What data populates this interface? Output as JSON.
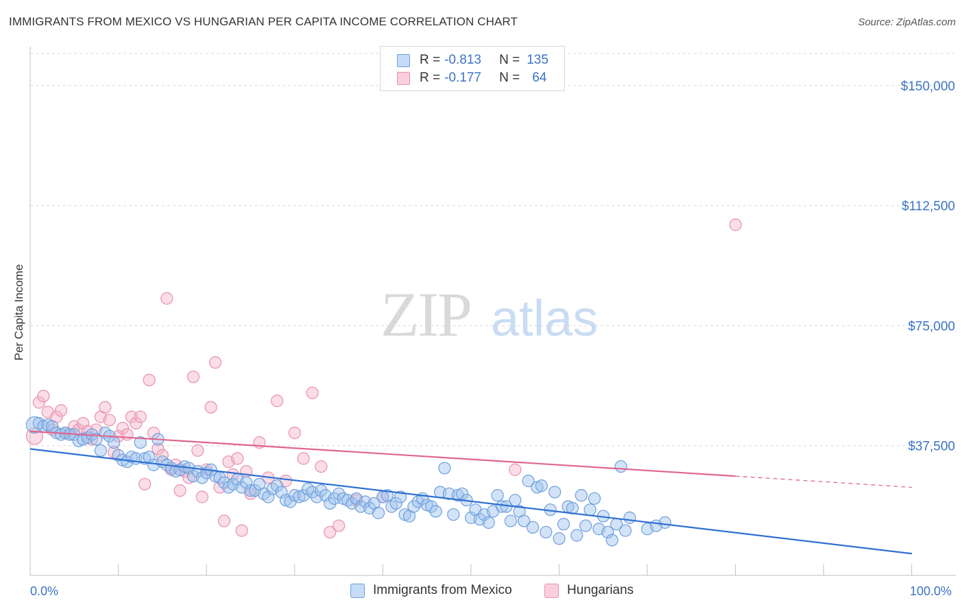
{
  "title": "IMMIGRANTS FROM MEXICO VS HUNGARIAN PER CAPITA INCOME CORRELATION CHART",
  "source": "Source: ZipAtlas.com",
  "watermark": {
    "zip": "ZIP",
    "atlas": "atlas"
  },
  "legend_top": {
    "r_label": "R =",
    "n_label": "N =",
    "rows": [
      {
        "r": "-0.813",
        "n": "135"
      },
      {
        "r": "-0.177",
        "n": "64"
      }
    ]
  },
  "colors": {
    "blue_fill": "#9dc1ee",
    "blue_stroke": "#6d9fdc",
    "blue_line": "#2e6fd1",
    "pink_fill": "#f5b3c8",
    "pink_stroke": "#e891ad",
    "pink_line": "#e0658f",
    "axis_text": "#3a73c6",
    "grid": "#d8d8d8"
  },
  "chart_data": {
    "type": "scatter",
    "title": "IMMIGRANTS FROM MEXICO VS HUNGARIAN PER CAPITA INCOME CORRELATION CHART",
    "xlabel": "",
    "ylabel": "Per Capita Income",
    "xlim": [
      0,
      100
    ],
    "ylim": [
      0,
      160000
    ],
    "x_tick_labels": [
      "0.0%",
      "100.0%"
    ],
    "y_ticks": [
      37500,
      75000,
      112500,
      150000
    ],
    "y_tick_labels": [
      "$37,500",
      "$75,000",
      "$112,500",
      "$150,000"
    ],
    "grid": "horizontal dashed",
    "legend_placement": "bottom-center",
    "series": [
      {
        "name": "Immigrants from Mexico",
        "color": "#9dc1ee",
        "R": -0.813,
        "N": 135,
        "trend": {
          "x": [
            0,
            100
          ],
          "y": [
            36500,
            3800
          ]
        },
        "points": [
          [
            0.5,
            44000
          ],
          [
            1.0,
            44500
          ],
          [
            1.5,
            43500
          ],
          [
            2.0,
            44000
          ],
          [
            2.5,
            43500
          ],
          [
            3.0,
            41500
          ],
          [
            3.5,
            41000
          ],
          [
            4.0,
            41500
          ],
          [
            4.5,
            41000
          ],
          [
            5.0,
            41000
          ],
          [
            5.5,
            39000
          ],
          [
            6.0,
            39500
          ],
          [
            6.5,
            40000
          ],
          [
            7.0,
            41000
          ],
          [
            7.5,
            39500
          ],
          [
            8.0,
            36000
          ],
          [
            8.5,
            41500
          ],
          [
            9.0,
            40500
          ],
          [
            9.5,
            38500
          ],
          [
            10.0,
            34500
          ],
          [
            10.5,
            33000
          ],
          [
            11.0,
            32500
          ],
          [
            11.5,
            34000
          ],
          [
            12.0,
            33500
          ],
          [
            12.5,
            38500
          ],
          [
            13.0,
            33500
          ],
          [
            13.5,
            34000
          ],
          [
            14.0,
            31500
          ],
          [
            14.5,
            39500
          ],
          [
            15.0,
            32500
          ],
          [
            15.5,
            31500
          ],
          [
            16.0,
            30500
          ],
          [
            16.5,
            29500
          ],
          [
            17.0,
            30000
          ],
          [
            17.5,
            31000
          ],
          [
            18.0,
            30500
          ],
          [
            18.5,
            28000
          ],
          [
            19.0,
            29500
          ],
          [
            19.5,
            27500
          ],
          [
            20.0,
            29000
          ],
          [
            20.5,
            30000
          ],
          [
            21.0,
            28000
          ],
          [
            21.5,
            27500
          ],
          [
            22.0,
            26000
          ],
          [
            22.5,
            24500
          ],
          [
            23.0,
            25500
          ],
          [
            23.5,
            27000
          ],
          [
            24.0,
            24500
          ],
          [
            24.5,
            26000
          ],
          [
            25.0,
            23500
          ],
          [
            25.5,
            23500
          ],
          [
            26.0,
            25500
          ],
          [
            26.5,
            22500
          ],
          [
            27.0,
            21500
          ],
          [
            27.5,
            24000
          ],
          [
            28.0,
            25000
          ],
          [
            28.5,
            23000
          ],
          [
            29.0,
            20500
          ],
          [
            29.5,
            20000
          ],
          [
            30.0,
            22000
          ],
          [
            30.5,
            21500
          ],
          [
            31.0,
            22000
          ],
          [
            31.5,
            24000
          ],
          [
            32.0,
            23000
          ],
          [
            32.5,
            21500
          ],
          [
            33.0,
            23500
          ],
          [
            33.5,
            22000
          ],
          [
            34.0,
            19500
          ],
          [
            34.5,
            21000
          ],
          [
            35.0,
            22500
          ],
          [
            35.5,
            21000
          ],
          [
            36.0,
            20500
          ],
          [
            36.5,
            19500
          ],
          [
            37.0,
            21000
          ],
          [
            37.5,
            18500
          ],
          [
            38.0,
            20000
          ],
          [
            38.5,
            18000
          ],
          [
            39.0,
            19500
          ],
          [
            39.5,
            16500
          ],
          [
            40.0,
            21500
          ],
          [
            40.5,
            22000
          ],
          [
            41.0,
            18500
          ],
          [
            41.5,
            19500
          ],
          [
            42.0,
            21500
          ],
          [
            42.5,
            16000
          ],
          [
            43.0,
            15500
          ],
          [
            43.5,
            18500
          ],
          [
            44.0,
            20000
          ],
          [
            44.5,
            21000
          ],
          [
            45.0,
            19000
          ],
          [
            45.5,
            18500
          ],
          [
            46.0,
            17000
          ],
          [
            46.5,
            23000
          ],
          [
            47.0,
            30500
          ],
          [
            47.5,
            22500
          ],
          [
            48.0,
            16000
          ],
          [
            48.5,
            22000
          ],
          [
            49.0,
            22500
          ],
          [
            49.5,
            20500
          ],
          [
            50.0,
            15000
          ],
          [
            50.5,
            17500
          ],
          [
            51.0,
            14500
          ],
          [
            51.5,
            16000
          ],
          [
            52.0,
            13500
          ],
          [
            52.5,
            17000
          ],
          [
            53.0,
            22000
          ],
          [
            53.5,
            18500
          ],
          [
            54.0,
            18500
          ],
          [
            54.5,
            14000
          ],
          [
            55.0,
            20500
          ],
          [
            55.5,
            17000
          ],
          [
            56.0,
            14000
          ],
          [
            56.5,
            26500
          ],
          [
            57.0,
            12000
          ],
          [
            57.5,
            24500
          ],
          [
            58.0,
            25000
          ],
          [
            58.5,
            10500
          ],
          [
            59.0,
            17500
          ],
          [
            59.5,
            23000
          ],
          [
            60.0,
            8500
          ],
          [
            60.5,
            13000
          ],
          [
            61.0,
            18500
          ],
          [
            61.5,
            18000
          ],
          [
            62.0,
            9500
          ],
          [
            62.5,
            22000
          ],
          [
            63.0,
            12500
          ],
          [
            63.5,
            17500
          ],
          [
            64.0,
            21000
          ],
          [
            64.5,
            11500
          ],
          [
            65.0,
            15500
          ],
          [
            65.5,
            10500
          ],
          [
            66.0,
            8000
          ],
          [
            66.5,
            13000
          ],
          [
            67.0,
            31000
          ],
          [
            67.5,
            11000
          ],
          [
            68.0,
            15000
          ],
          [
            70.0,
            11500
          ],
          [
            71.0,
            12500
          ],
          [
            72.0,
            13500
          ]
        ]
      },
      {
        "name": "Hungarians",
        "color": "#f5b3c8",
        "R": -0.177,
        "N": 64,
        "trend": {
          "x": [
            0,
            80
          ],
          "y": [
            42000,
            28000
          ],
          "dashed_to": [
            100,
            24500
          ]
        },
        "points": [
          [
            0.5,
            40500
          ],
          [
            1.0,
            51000
          ],
          [
            1.5,
            53000
          ],
          [
            2.0,
            48000
          ],
          [
            2.5,
            42500
          ],
          [
            3.0,
            46500
          ],
          [
            3.5,
            48500
          ],
          [
            4.0,
            41500
          ],
          [
            4.5,
            41000
          ],
          [
            5.0,
            43500
          ],
          [
            5.5,
            42500
          ],
          [
            6.0,
            44500
          ],
          [
            6.5,
            42000
          ],
          [
            7.0,
            39500
          ],
          [
            7.5,
            42500
          ],
          [
            8.0,
            46500
          ],
          [
            8.5,
            49500
          ],
          [
            9.0,
            45500
          ],
          [
            9.5,
            35500
          ],
          [
            10.0,
            40500
          ],
          [
            10.5,
            43000
          ],
          [
            11.0,
            41000
          ],
          [
            11.5,
            46500
          ],
          [
            12.0,
            44500
          ],
          [
            12.5,
            46500
          ],
          [
            13.0,
            25500
          ],
          [
            13.5,
            58000
          ],
          [
            14.0,
            41500
          ],
          [
            14.5,
            36500
          ],
          [
            15.0,
            34500
          ],
          [
            15.5,
            83500
          ],
          [
            16.0,
            30000
          ],
          [
            16.5,
            31500
          ],
          [
            17.0,
            23500
          ],
          [
            17.5,
            29500
          ],
          [
            18.0,
            27500
          ],
          [
            18.5,
            59000
          ],
          [
            19.0,
            36000
          ],
          [
            19.5,
            21500
          ],
          [
            20.0,
            30000
          ],
          [
            20.5,
            49500
          ],
          [
            21.0,
            63500
          ],
          [
            21.5,
            24500
          ],
          [
            22.0,
            14000
          ],
          [
            22.5,
            32500
          ],
          [
            23.0,
            28500
          ],
          [
            23.5,
            33500
          ],
          [
            24.0,
            11000
          ],
          [
            24.5,
            29500
          ],
          [
            25.0,
            22500
          ],
          [
            26.0,
            38500
          ],
          [
            27.0,
            27500
          ],
          [
            28.0,
            51500
          ],
          [
            29.0,
            26500
          ],
          [
            30.0,
            41500
          ],
          [
            31.0,
            33500
          ],
          [
            32.0,
            54000
          ],
          [
            33.0,
            31000
          ],
          [
            34.0,
            10500
          ],
          [
            35.0,
            12500
          ],
          [
            37.0,
            20500
          ],
          [
            40.0,
            21500
          ],
          [
            55.0,
            30000
          ],
          [
            80.0,
            106500
          ]
        ]
      }
    ]
  },
  "legend_bottom": [
    {
      "label": "Immigrants from Mexico"
    },
    {
      "label": "Hungarians"
    }
  ]
}
